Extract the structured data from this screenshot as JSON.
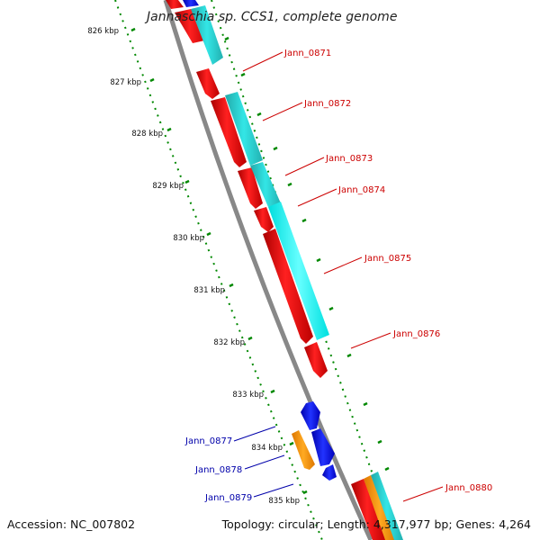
{
  "title": "Jannaschia sp. CCS1, complete genome",
  "footer": {
    "accession": "Accession: NC_007802",
    "topology": "Topology: circular; Length: 4,317,977 bp; Genes: 4,264"
  },
  "scale": {
    "unit": "kbp",
    "ticks": [
      {
        "value": 826,
        "label": "826 kbp"
      },
      {
        "value": 827,
        "label": "827 kbp"
      },
      {
        "value": 828,
        "label": "828 kbp"
      },
      {
        "value": 829,
        "label": "829 kbp"
      },
      {
        "value": 830,
        "label": "830 kbp"
      },
      {
        "value": 831,
        "label": "831 kbp"
      },
      {
        "value": 832,
        "label": "832 kbp"
      },
      {
        "value": 833,
        "label": "833 kbp"
      },
      {
        "value": 834,
        "label": "834 kbp"
      },
      {
        "value": 835,
        "label": "835 kbp"
      }
    ]
  },
  "genes": [
    {
      "name": "Jann_0871",
      "strand": "forward"
    },
    {
      "name": "Jann_0872",
      "strand": "forward"
    },
    {
      "name": "Jann_0873",
      "strand": "forward"
    },
    {
      "name": "Jann_0874",
      "strand": "forward"
    },
    {
      "name": "Jann_0875",
      "strand": "forward"
    },
    {
      "name": "Jann_0876",
      "strand": "forward"
    },
    {
      "name": "Jann_0877",
      "strand": "reverse"
    },
    {
      "name": "Jann_0878",
      "strand": "reverse"
    },
    {
      "name": "Jann_0879",
      "strand": "reverse"
    },
    {
      "name": "Jann_0880",
      "strand": "forward"
    }
  ],
  "colors": {
    "cds": "#ff0000",
    "rna": "#00cccc",
    "reverse_cds": "#0000ee",
    "orange": "#ff9900",
    "backbone": "#888888",
    "ticks": "#008800",
    "label_forward": "#cc0000",
    "label_reverse": "#0000aa"
  }
}
